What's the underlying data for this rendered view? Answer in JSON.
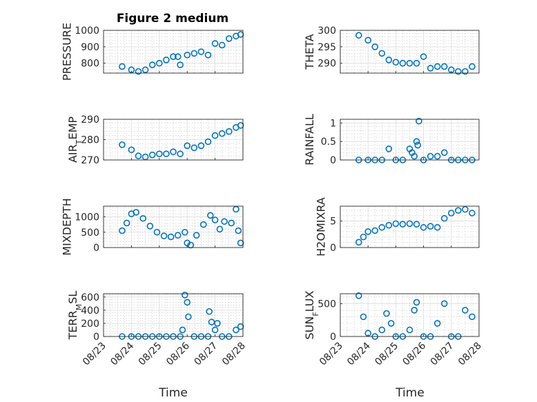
{
  "figure": {
    "title": "Figure 2 medium",
    "xlabel": "Time",
    "x_tick_labels": [
      "08/23",
      "08/24",
      "08/25",
      "08/26",
      "08/27",
      "08/28"
    ]
  },
  "colors": {
    "marker": "#0072BD",
    "axis": "#262626",
    "grid": "#dcdcdc"
  },
  "chart_data": [
    {
      "type": "scatter",
      "ylabel": "PRESSURE",
      "ylim": [
        740,
        1000
      ],
      "yticks": [
        800,
        900,
        1000
      ],
      "points": [
        [
          "08/23 16:00",
          780
        ],
        [
          "08/24 00:00",
          760
        ],
        [
          "08/24 06:00",
          750
        ],
        [
          "08/24 12:00",
          760
        ],
        [
          "08/24 18:00",
          790
        ],
        [
          "08/25 00:00",
          800
        ],
        [
          "08/25 06:00",
          820
        ],
        [
          "08/25 12:00",
          840
        ],
        [
          "08/25 16:00",
          840
        ],
        [
          "08/25 18:00",
          790
        ],
        [
          "08/26 00:00",
          850
        ],
        [
          "08/26 06:00",
          860
        ],
        [
          "08/26 12:00",
          870
        ],
        [
          "08/26 18:00",
          850
        ],
        [
          "08/27 00:00",
          920
        ],
        [
          "08/27 06:00",
          910
        ],
        [
          "08/27 12:00",
          950
        ],
        [
          "08/27 18:00",
          965
        ],
        [
          "08/27 22:00",
          975
        ]
      ]
    },
    {
      "type": "scatter",
      "ylabel": "THETA",
      "ylim": [
        287,
        300
      ],
      "yticks": [
        290,
        295,
        300
      ],
      "points": [
        [
          "08/23 16:00",
          298.5
        ],
        [
          "08/24 00:00",
          297
        ],
        [
          "08/24 06:00",
          295
        ],
        [
          "08/24 12:00",
          293
        ],
        [
          "08/24 18:00",
          291
        ],
        [
          "08/25 00:00",
          290.3
        ],
        [
          "08/25 06:00",
          290
        ],
        [
          "08/25 12:00",
          290
        ],
        [
          "08/25 18:00",
          290
        ],
        [
          "08/26 00:00",
          292
        ],
        [
          "08/26 06:00",
          288.5
        ],
        [
          "08/26 12:00",
          289
        ],
        [
          "08/26 18:00",
          289
        ],
        [
          "08/27 00:00",
          288
        ],
        [
          "08/27 06:00",
          287.5
        ],
        [
          "08/27 12:00",
          287.5
        ],
        [
          "08/27 18:00",
          289
        ]
      ]
    },
    {
      "type": "scatter",
      "ylabel": "AIR_TEMP",
      "ylim": [
        270,
        290
      ],
      "yticks": [
        270,
        280,
        290
      ],
      "points": [
        [
          "08/23 16:00",
          277.5
        ],
        [
          "08/24 00:00",
          275
        ],
        [
          "08/24 06:00",
          272
        ],
        [
          "08/24 12:00",
          271.5
        ],
        [
          "08/24 18:00",
          272.5
        ],
        [
          "08/25 00:00",
          273
        ],
        [
          "08/25 06:00",
          273
        ],
        [
          "08/25 12:00",
          274
        ],
        [
          "08/25 18:00",
          273
        ],
        [
          "08/26 00:00",
          277
        ],
        [
          "08/26 06:00",
          276
        ],
        [
          "08/26 12:00",
          277
        ],
        [
          "08/26 18:00",
          279
        ],
        [
          "08/27 00:00",
          282
        ],
        [
          "08/27 06:00",
          283
        ],
        [
          "08/27 12:00",
          284
        ],
        [
          "08/27 18:00",
          286
        ],
        [
          "08/27 22:00",
          287
        ]
      ]
    },
    {
      "type": "scatter",
      "ylabel": "RAINFALL",
      "ylim": [
        0,
        1.1
      ],
      "yticks": [
        0,
        0.5,
        1
      ],
      "yticklabels": [
        "0",
        "0.5",
        "1"
      ],
      "points": [
        [
          "08/23 16:00",
          0
        ],
        [
          "08/24 00:00",
          0
        ],
        [
          "08/24 06:00",
          0
        ],
        [
          "08/24 12:00",
          0
        ],
        [
          "08/24 18:00",
          0.3
        ],
        [
          "08/25 00:00",
          0
        ],
        [
          "08/25 06:00",
          0
        ],
        [
          "08/25 12:00",
          0.3
        ],
        [
          "08/25 14:00",
          0.2
        ],
        [
          "08/25 16:00",
          0.1
        ],
        [
          "08/25 18:00",
          0.5
        ],
        [
          "08/25 19:00",
          0.4
        ],
        [
          "08/25 20:00",
          1.05
        ],
        [
          "08/26 00:00",
          0
        ],
        [
          "08/26 06:00",
          0.1
        ],
        [
          "08/26 12:00",
          0.1
        ],
        [
          "08/26 18:00",
          0.2
        ],
        [
          "08/27 00:00",
          0
        ],
        [
          "08/27 06:00",
          0
        ],
        [
          "08/27 12:00",
          0
        ],
        [
          "08/27 18:00",
          0
        ]
      ]
    },
    {
      "type": "scatter",
      "ylabel": "MIXDEPTH",
      "ylim": [
        0,
        1350
      ],
      "yticks": [
        0,
        500,
        1000
      ],
      "points": [
        [
          "08/23 16:00",
          550
        ],
        [
          "08/23 20:00",
          800
        ],
        [
          "08/24 00:00",
          1100
        ],
        [
          "08/24 04:00",
          1150
        ],
        [
          "08/24 10:00",
          950
        ],
        [
          "08/24 16:00",
          700
        ],
        [
          "08/24 22:00",
          500
        ],
        [
          "08/25 04:00",
          380
        ],
        [
          "08/25 10:00",
          350
        ],
        [
          "08/25 16:00",
          400
        ],
        [
          "08/25 22:00",
          500
        ],
        [
          "08/26 00:00",
          150
        ],
        [
          "08/26 03:00",
          80
        ],
        [
          "08/26 08:00",
          400
        ],
        [
          "08/26 14:00",
          750
        ],
        [
          "08/26 20:00",
          1050
        ],
        [
          "08/27 00:00",
          900
        ],
        [
          "08/27 04:00",
          600
        ],
        [
          "08/27 08:00",
          850
        ],
        [
          "08/27 14:00",
          800
        ],
        [
          "08/27 18:00",
          1250
        ],
        [
          "08/27 20:00",
          550
        ],
        [
          "08/27 22:00",
          150
        ]
      ]
    },
    {
      "type": "scatter",
      "ylabel": "H2OMIXRA",
      "ylim": [
        0,
        7.8
      ],
      "yticks": [
        0,
        5
      ],
      "points": [
        [
          "08/23 16:00",
          1
        ],
        [
          "08/23 20:00",
          2
        ],
        [
          "08/24 00:00",
          3
        ],
        [
          "08/24 06:00",
          3.2
        ],
        [
          "08/24 12:00",
          3.8
        ],
        [
          "08/24 18:00",
          4.2
        ],
        [
          "08/25 00:00",
          4.5
        ],
        [
          "08/25 06:00",
          4.4
        ],
        [
          "08/25 12:00",
          4.5
        ],
        [
          "08/25 18:00",
          4.4
        ],
        [
          "08/26 00:00",
          3.8
        ],
        [
          "08/26 06:00",
          4
        ],
        [
          "08/26 12:00",
          3.8
        ],
        [
          "08/26 18:00",
          5.5
        ],
        [
          "08/27 00:00",
          6.5
        ],
        [
          "08/27 06:00",
          7
        ],
        [
          "08/27 12:00",
          7.2
        ],
        [
          "08/27 18:00",
          6.5
        ]
      ]
    },
    {
      "type": "scatter",
      "ylabel": "TERR_MSL",
      "ylim": [
        0,
        650
      ],
      "yticks": [
        0,
        200,
        400,
        600
      ],
      "points": [
        [
          "08/23 16:00",
          0
        ],
        [
          "08/24 00:00",
          0
        ],
        [
          "08/24 06:00",
          0
        ],
        [
          "08/24 12:00",
          0
        ],
        [
          "08/24 18:00",
          0
        ],
        [
          "08/25 00:00",
          0
        ],
        [
          "08/25 06:00",
          0
        ],
        [
          "08/25 12:00",
          0
        ],
        [
          "08/25 18:00",
          0
        ],
        [
          "08/25 20:00",
          100
        ],
        [
          "08/25 22:00",
          630
        ],
        [
          "08/26 00:00",
          520
        ],
        [
          "08/26 01:00",
          300
        ],
        [
          "08/26 06:00",
          0
        ],
        [
          "08/26 12:00",
          0
        ],
        [
          "08/26 18:00",
          0
        ],
        [
          "08/26 19:00",
          380
        ],
        [
          "08/26 21:00",
          220
        ],
        [
          "08/27 00:00",
          100
        ],
        [
          "08/27 02:00",
          200
        ],
        [
          "08/27 06:00",
          0
        ],
        [
          "08/27 12:00",
          0
        ],
        [
          "08/27 18:00",
          100
        ],
        [
          "08/27 22:00",
          150
        ]
      ]
    },
    {
      "type": "scatter",
      "ylabel": "SUN_FLUX",
      "ylim": [
        0,
        650
      ],
      "yticks": [
        0,
        500
      ],
      "points": [
        [
          "08/23 16:00",
          620
        ],
        [
          "08/23 20:00",
          300
        ],
        [
          "08/24 00:00",
          50
        ],
        [
          "08/24 06:00",
          0
        ],
        [
          "08/24 12:00",
          100
        ],
        [
          "08/24 16:00",
          350
        ],
        [
          "08/24 20:00",
          200
        ],
        [
          "08/25 00:00",
          0
        ],
        [
          "08/25 06:00",
          0
        ],
        [
          "08/25 12:00",
          100
        ],
        [
          "08/25 16:00",
          400
        ],
        [
          "08/25 18:00",
          520
        ],
        [
          "08/26 00:00",
          0
        ],
        [
          "08/26 06:00",
          0
        ],
        [
          "08/26 12:00",
          200
        ],
        [
          "08/26 18:00",
          500
        ],
        [
          "08/27 00:00",
          0
        ],
        [
          "08/27 06:00",
          0
        ],
        [
          "08/27 12:00",
          400
        ],
        [
          "08/27 18:00",
          300
        ]
      ]
    }
  ]
}
